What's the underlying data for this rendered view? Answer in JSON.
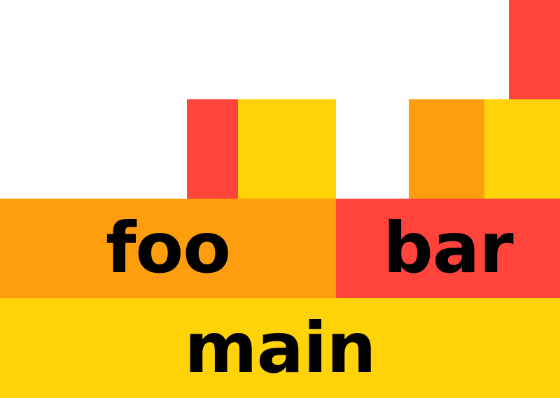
{
  "colors": {
    "yellow": "#FFD307",
    "orange": "#FE9E0E",
    "red": "#FF443B",
    "label": "#000000",
    "background": "#FFFFFF"
  },
  "frames": [
    {
      "id": "main",
      "label": "main",
      "color": "yellow",
      "children": [
        "foo",
        "bar",
        "main-child-yellow"
      ]
    },
    {
      "id": "foo",
      "label": "foo",
      "color": "orange",
      "parent": "main"
    },
    {
      "id": "bar",
      "label": "bar",
      "color": "red",
      "parent": "main"
    },
    {
      "id": "foo-child-red",
      "label": "",
      "color": "red",
      "parent": "foo"
    },
    {
      "id": "foo-child-yellow",
      "label": "",
      "color": "yellow",
      "parent": "foo"
    },
    {
      "id": "bar-child-orange",
      "label": "",
      "color": "orange",
      "parent": "bar"
    },
    {
      "id": "main-child-yellow",
      "label": "",
      "color": "yellow",
      "parent": "main"
    },
    {
      "id": "top-red",
      "label": "",
      "color": "red",
      "parent": "main-child-yellow"
    }
  ]
}
